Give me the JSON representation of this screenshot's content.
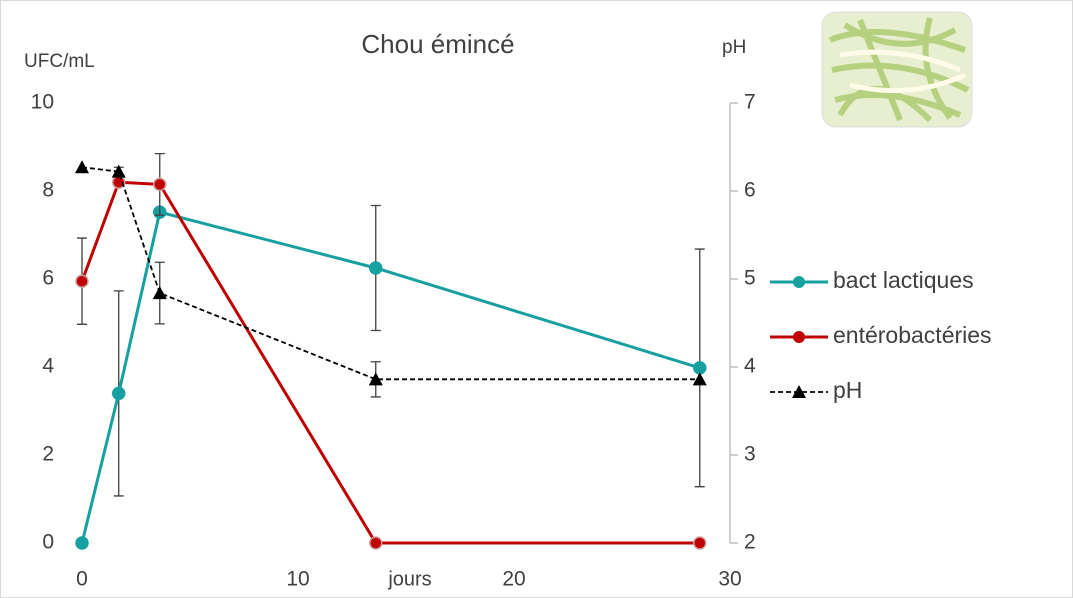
{
  "chart_data": {
    "type": "line",
    "title": "Chou émincé",
    "y_label": "UFC/mL",
    "y2_label": "pH",
    "x_label": "jours",
    "x": [
      0,
      1.7,
      3.6,
      13.6,
      28.6
    ],
    "xlim": [
      0,
      30
    ],
    "xticks": [
      0,
      10,
      20,
      30
    ],
    "ylim": [
      0,
      10
    ],
    "yticks": [
      0,
      2,
      4,
      6,
      8,
      10
    ],
    "y2lim": [
      2,
      7
    ],
    "y2ticks": [
      2,
      3,
      4,
      5,
      6,
      7
    ],
    "series": [
      {
        "name": "bact lactiques",
        "color": "#17a0a0",
        "values": [
          0,
          3.4,
          7.52,
          6.25,
          3.98
        ],
        "errors": [
          null,
          2.33,
          null,
          1.42,
          2.7
        ],
        "marker": "circle",
        "dashed": false
      },
      {
        "name": "entérobactéries",
        "color": "#c00000",
        "values": [
          5.95,
          8.2,
          8.15,
          0,
          0
        ],
        "errors": [
          0.98,
          null,
          0.7,
          null,
          null
        ],
        "marker": "circle",
        "dashed": false
      },
      {
        "name": "pH",
        "color": "#000000",
        "axis": "y2",
        "values": [
          6.27,
          6.22,
          4.84,
          3.86,
          3.86
        ],
        "errors": [
          null,
          0.05,
          0.35,
          0.2,
          null
        ],
        "marker": "triangle",
        "dashed": true
      }
    ]
  }
}
